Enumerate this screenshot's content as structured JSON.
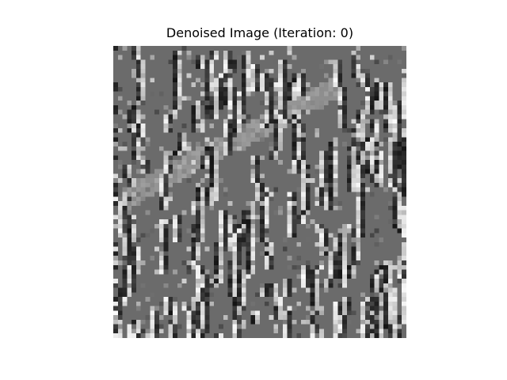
{
  "figure": {
    "title": "Denoised Image (Iteration: 0)",
    "colors": {
      "background": "#ffffff",
      "image_base": "#6b6b6b",
      "title_text": "#000000"
    },
    "image": {
      "colormap": "gray",
      "grid_size": 64,
      "description_shown": false
    }
  }
}
